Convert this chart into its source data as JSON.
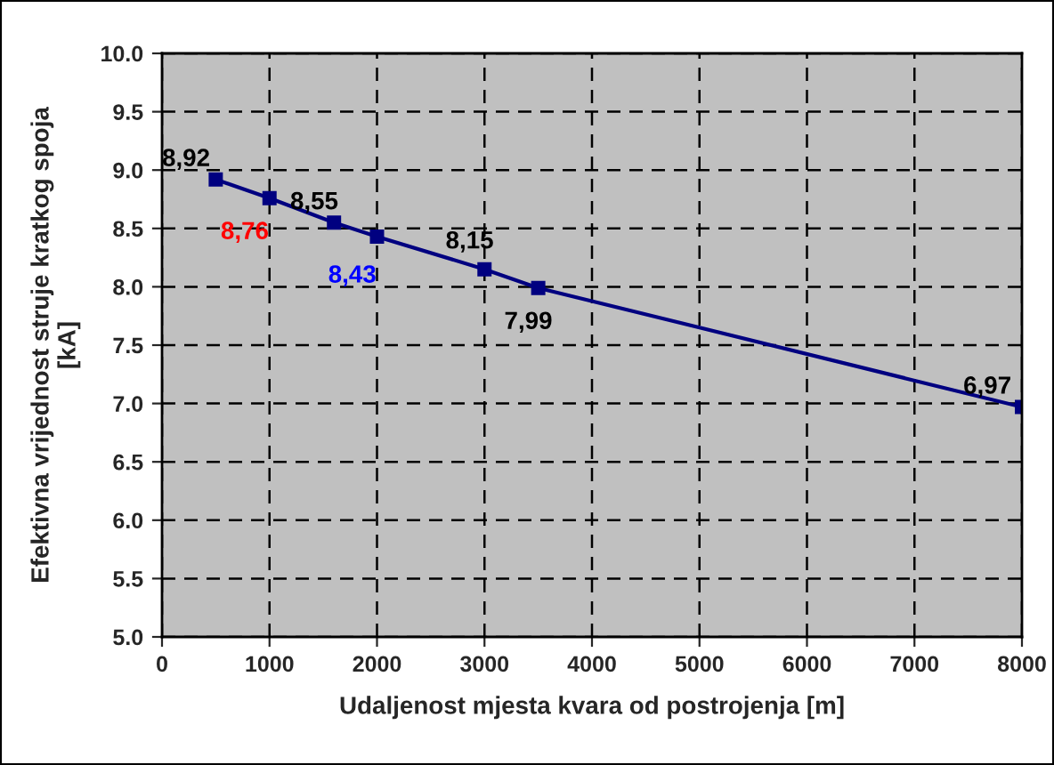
{
  "chart_data": {
    "type": "line",
    "xlabel": "Udaljenost mjesta kvara od postrojenja [m]",
    "ylabel": "Efektivna vrijednost struje kratkog spoja\n[kA]",
    "series": [
      {
        "color": "#000080",
        "x": [
          500,
          1000,
          1600,
          2000,
          3000,
          3500,
          8000
        ],
        "values": [
          8.92,
          8.76,
          8.55,
          8.43,
          8.15,
          7.99,
          6.97
        ],
        "value_labels": [
          "8,92",
          "8,76",
          "8,55",
          "8,43",
          "8,15",
          "7,99",
          "6,97"
        ]
      }
    ],
    "xlim": [
      0,
      8000
    ],
    "xticks": [
      0,
      1000,
      2000,
      3000,
      4000,
      5000,
      6000,
      7000,
      8000
    ],
    "ylim": [
      5.0,
      10.0
    ],
    "yticks": [
      {
        "value": 5,
        "label": "5.0"
      },
      5.5,
      {
        "value": 6,
        "label": "6.0"
      },
      6.5,
      {
        "value": 7,
        "label": "7.0"
      },
      7.5,
      {
        "value": 8,
        "label": "8.0"
      },
      8.5,
      {
        "value": 9,
        "label": "9.0"
      },
      9.5,
      {
        "value": 10,
        "label": "10.0"
      }
    ],
    "grid": true,
    "marker": "square",
    "line_style": "solid",
    "legend": false
  }
}
